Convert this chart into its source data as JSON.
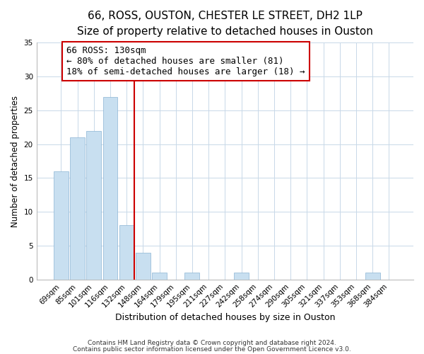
{
  "title": "66, ROSS, OUSTON, CHESTER LE STREET, DH2 1LP",
  "subtitle": "Size of property relative to detached houses in Ouston",
  "xlabel": "Distribution of detached houses by size in Ouston",
  "ylabel": "Number of detached properties",
  "categories": [
    "69sqm",
    "85sqm",
    "101sqm",
    "116sqm",
    "132sqm",
    "148sqm",
    "164sqm",
    "179sqm",
    "195sqm",
    "211sqm",
    "227sqm",
    "242sqm",
    "258sqm",
    "274sqm",
    "290sqm",
    "305sqm",
    "321sqm",
    "337sqm",
    "353sqm",
    "368sqm",
    "384sqm"
  ],
  "values": [
    16,
    21,
    22,
    27,
    8,
    4,
    1,
    0,
    1,
    0,
    0,
    1,
    0,
    0,
    0,
    0,
    0,
    0,
    0,
    1,
    0
  ],
  "bar_color": "#c8dff0",
  "bar_edgecolor": "#8ab4d4",
  "reference_line_color": "#cc0000",
  "reference_line_index": 4,
  "ylim": [
    0,
    35
  ],
  "yticks": [
    0,
    5,
    10,
    15,
    20,
    25,
    30,
    35
  ],
  "annotation_title": "66 ROSS: 130sqm",
  "annotation_line1": "← 80% of detached houses are smaller (81)",
  "annotation_line2": "18% of semi-detached houses are larger (18) →",
  "annotation_box_facecolor": "#ffffff",
  "annotation_box_edgecolor": "#cc0000",
  "footnote1": "Contains HM Land Registry data © Crown copyright and database right 2024.",
  "footnote2": "Contains public sector information licensed under the Open Government Licence v3.0.",
  "background_color": "#ffffff",
  "grid_color": "#c8d8e8",
  "title_fontsize": 11,
  "subtitle_fontsize": 9.5,
  "xlabel_fontsize": 9,
  "ylabel_fontsize": 8.5,
  "tick_fontsize": 7.5,
  "annotation_fontsize": 9,
  "footnote_fontsize": 6.5
}
